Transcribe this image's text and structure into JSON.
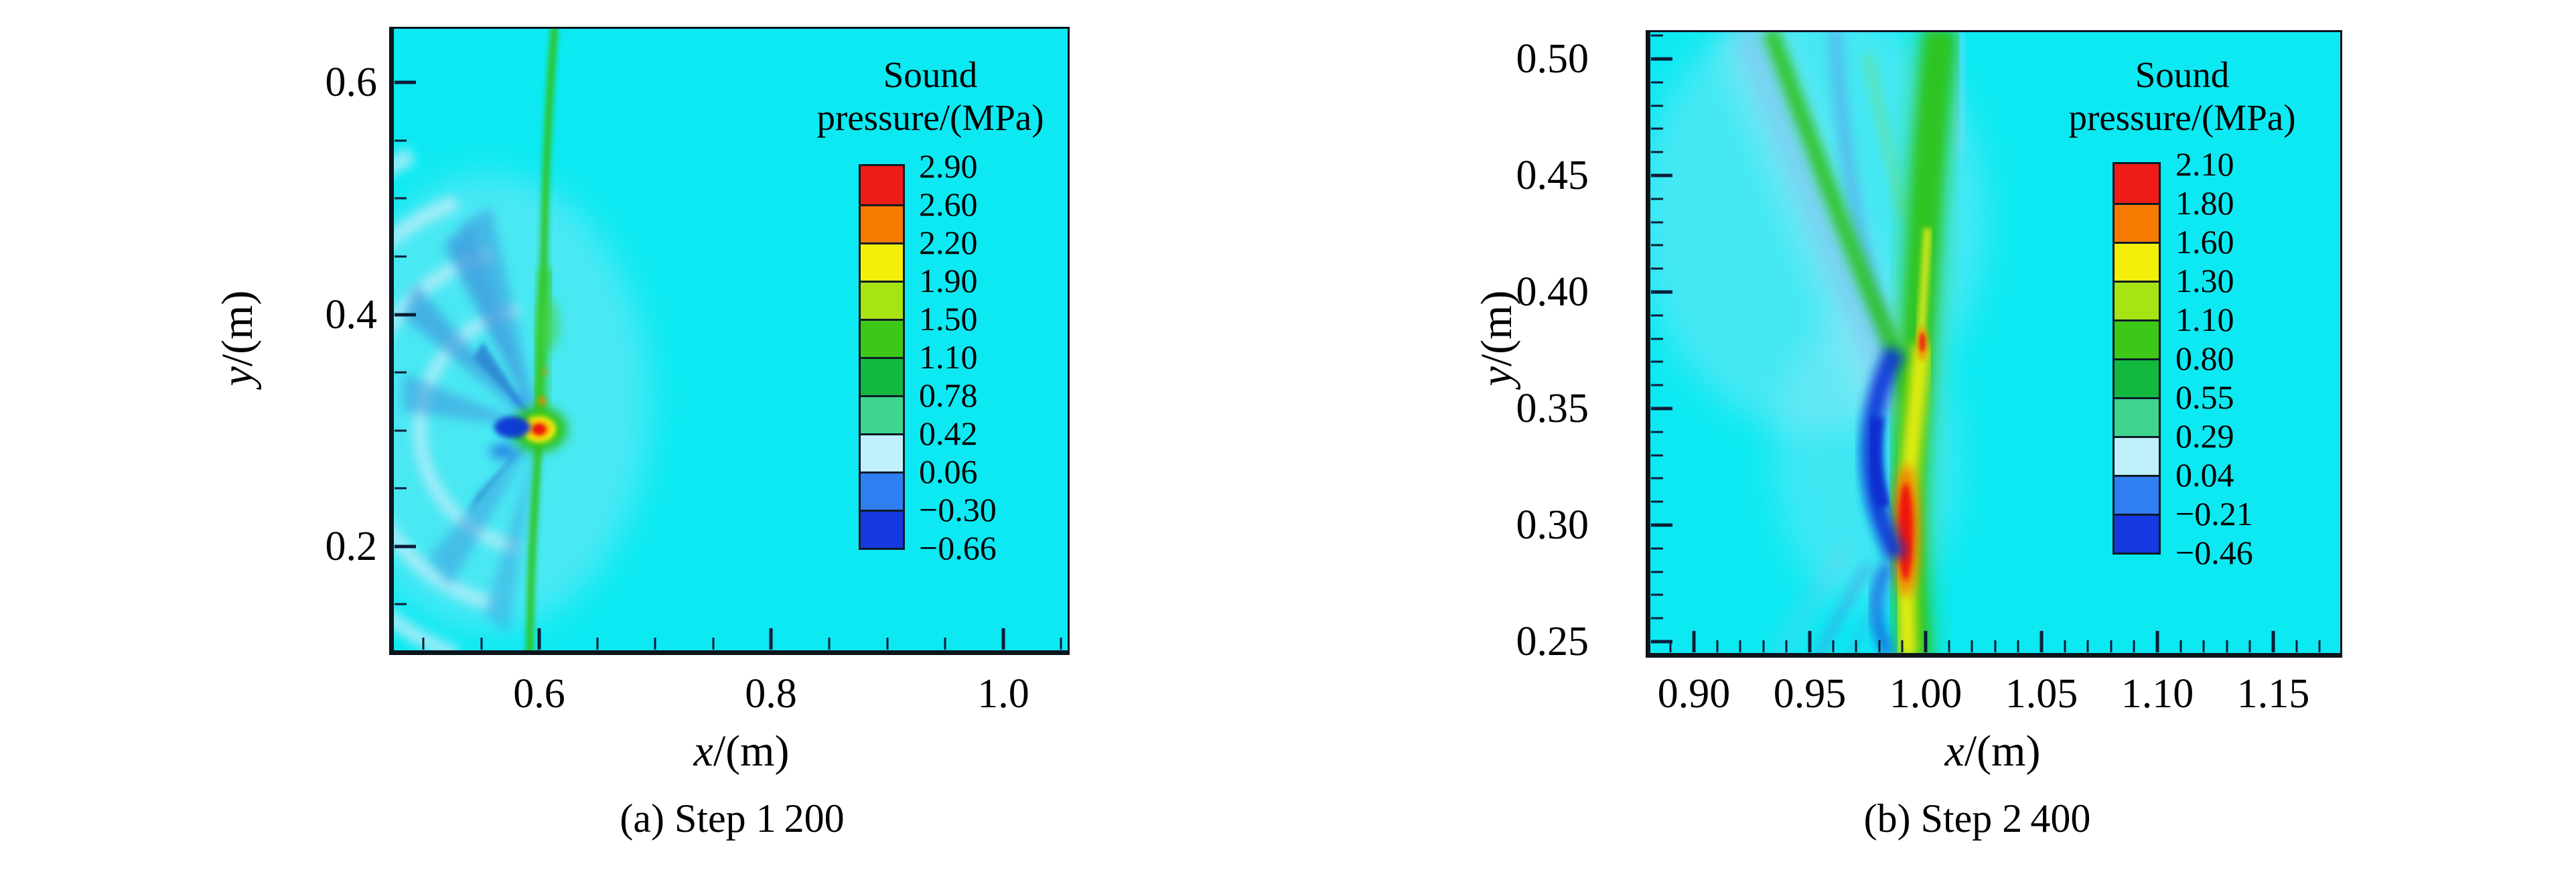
{
  "page": {
    "background": "#ffffff",
    "figure_type": "two sound-pressure contour snapshots"
  },
  "chart_data": [
    {
      "type": "heatmap",
      "caption": "(a) Step 1 200",
      "xlabel_letter": "x",
      "xlabel_unit": "/(m)",
      "ylabel_letter": "y",
      "ylabel_unit": "/(m)",
      "x_tick_labels": [
        "0.6",
        "0.8",
        "1.0"
      ],
      "y_tick_labels": [
        "0.6",
        "0.4",
        "0.2"
      ],
      "xlim": [
        0.47,
        1.06
      ],
      "ylim": [
        0.11,
        0.65
      ],
      "grid": false,
      "colorbar": {
        "title_line1": "Sound",
        "title_line2": "pressure/(MPa)",
        "tick_labels": [
          "2.90",
          "2.60",
          "2.20",
          "1.90",
          "1.50",
          "1.10",
          "0.78",
          "0.42",
          "0.06",
          "−0.30",
          "−0.66"
        ],
        "tick_values": [
          2.9,
          2.6,
          2.2,
          1.9,
          1.5,
          1.1,
          0.78,
          0.42,
          0.06,
          -0.3,
          -0.66
        ],
        "segment_colors_top_to_bottom": [
          "#ed1c16",
          "#f47a00",
          "#f3ef0a",
          "#a6e414",
          "#3dc818",
          "#12b93e",
          "#3fd590",
          "#bff0fb",
          "#2f7ef2",
          "#1638e0"
        ]
      },
      "field": {
        "ambient_color": "#0de9f2",
        "ambient_value_MPa": 0.2,
        "features": [
          {
            "name": "incident-shock-front",
            "shape": "wavy vertical green line",
            "x_m": 0.6,
            "y_span_m": [
              0.11,
              0.65
            ],
            "value_MPa": 1.1
          },
          {
            "name": "focal-spot",
            "x_m": 0.6,
            "y_m": 0.3,
            "peak_MPa": 2.9,
            "rings": [
              "red",
              "orange",
              "yellow",
              "green"
            ]
          },
          {
            "name": "negative-pressure-lobe",
            "x_m": 0.585,
            "y_m": 0.3,
            "min_MPa": -0.66
          },
          {
            "name": "rarefaction-rays",
            "origin_m": [
              0.6,
              0.3
            ],
            "direction": "fanning to upper-left and lower-left",
            "value_MPa": -0.3
          },
          {
            "name": "scattered-wavefront-arcs",
            "center_m": [
              0.6,
              0.3
            ],
            "radii_m": [
              0.1,
              0.16,
              0.21,
              0.26
            ],
            "value_MPa": 0.06
          }
        ]
      }
    },
    {
      "type": "heatmap",
      "caption": "(b) Step 2 400",
      "xlabel_letter": "x",
      "xlabel_unit": "/(m)",
      "ylabel_letter": "y",
      "ylabel_unit": "/(m)",
      "x_tick_labels": [
        "0.90",
        "0.95",
        "1.00",
        "1.05",
        "1.10",
        "1.15"
      ],
      "y_tick_labels": [
        "0.50",
        "0.45",
        "0.40",
        "0.35",
        "0.30",
        "0.25"
      ],
      "xlim": [
        0.88,
        1.18
      ],
      "ylim": [
        0.24,
        0.51
      ],
      "grid": false,
      "colorbar": {
        "title_line1": "Sound",
        "title_line2": "pressure/(MPa)",
        "tick_labels": [
          "2.10",
          "1.80",
          "1.60",
          "1.30",
          "1.10",
          "0.80",
          "0.55",
          "0.29",
          "0.04",
          "−0.21",
          "−0.46"
        ],
        "tick_values": [
          2.1,
          1.8,
          1.6,
          1.3,
          1.1,
          0.8,
          0.55,
          0.29,
          0.04,
          -0.21,
          -0.46
        ],
        "segment_colors_top_to_bottom": [
          "#ed1c16",
          "#f47a00",
          "#f3ef0a",
          "#a6e414",
          "#3dc818",
          "#12b93e",
          "#3fd590",
          "#bff0fb",
          "#2f7ef2",
          "#1638e0"
        ]
      },
      "field": {
        "ambient_color": "#0de9f2",
        "ambient_value_MPa": 0.2,
        "features": [
          {
            "name": "main-wave-band",
            "shape": "vertical green band",
            "x_m": 1.0,
            "y_span_m": [
              0.24,
              0.51
            ],
            "value_MPa": 1.1
          },
          {
            "name": "focal-spot",
            "x_m": 0.99,
            "y_m": 0.3,
            "peak_MPa": 2.1,
            "rings": [
              "red",
              "orange",
              "yellow",
              "green"
            ]
          },
          {
            "name": "negative-pressure-crescent",
            "x_m": 0.975,
            "y_m": 0.33,
            "min_MPa": -0.46
          },
          {
            "name": "upper-left-branch",
            "from_m": [
              1.0,
              0.35
            ],
            "to_m": [
              0.93,
              0.51
            ],
            "value_MPa": 0.8
          },
          {
            "name": "trailing-blue-streaks",
            "x_span_m": [
              0.93,
              0.98
            ],
            "y_span_m": [
              0.24,
              0.31
            ],
            "value_MPa": -0.21
          }
        ]
      }
    }
  ]
}
